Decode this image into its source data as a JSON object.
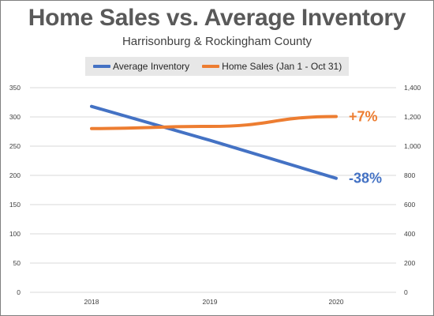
{
  "chart_data": {
    "type": "line",
    "title": "Home Sales vs. Average Inventory",
    "subtitle": "Harrisonburg & Rockingham County",
    "x": [
      "2018",
      "2019",
      "2020"
    ],
    "series": [
      {
        "name": "Average Inventory",
        "axis": "left",
        "color": "#4472c4",
        "values": [
          318,
          260,
          195
        ],
        "annotation": "-38%"
      },
      {
        "name": "Home Sales (Jan 1 - Oct 31)",
        "axis": "right",
        "color": "#ed7d31",
        "values": [
          1120,
          1135,
          1203
        ],
        "annotation": "+7%"
      }
    ],
    "y_left": {
      "ylim": [
        0,
        350
      ],
      "ticks": [
        0,
        50,
        100,
        150,
        200,
        250,
        300,
        350
      ],
      "tick_labels": [
        "0",
        "50",
        "100",
        "150",
        "200",
        "250",
        "300",
        "350"
      ]
    },
    "y_right": {
      "ylim": [
        0,
        1400
      ],
      "ticks": [
        0,
        200,
        400,
        600,
        800,
        1000,
        1200,
        1400
      ],
      "tick_labels": [
        "0",
        "200",
        "400",
        "600",
        "800",
        "1,000",
        "1,200",
        "1,400"
      ]
    },
    "grid": true,
    "legend_position": "top"
  }
}
